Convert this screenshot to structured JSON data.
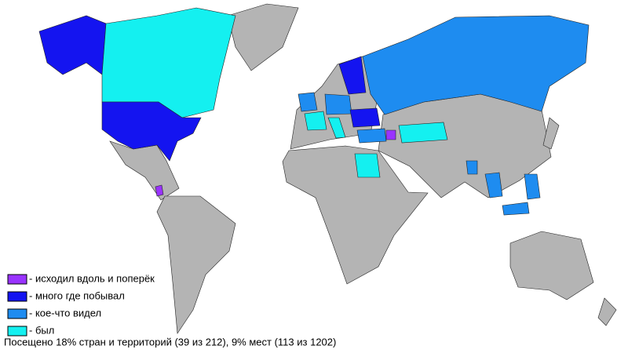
{
  "legend": [
    {
      "label": "- исходил вдоль и поперёк",
      "color": "#9933ff"
    },
    {
      "label": "- много где побывал",
      "color": "#1414f0"
    },
    {
      "label": "- кое-что видел",
      "color": "#1e8cf0"
    },
    {
      "label": "- был",
      "color": "#14f0f0"
    }
  ],
  "summary": "Посещено 18% стран и территорий (39 из 212), 9% мест (113 из 1202)"
}
